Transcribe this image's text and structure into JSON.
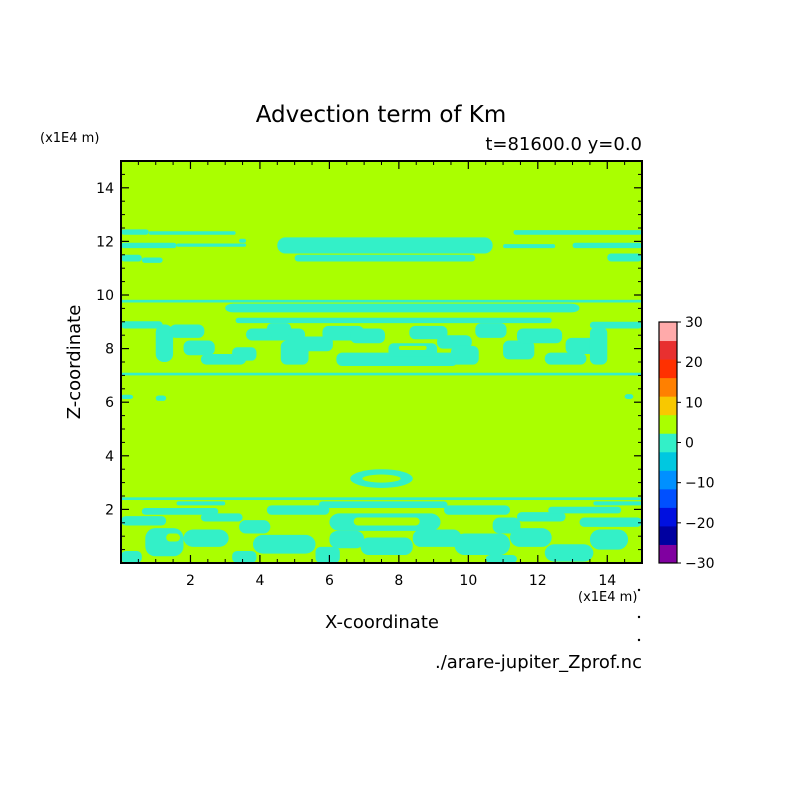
{
  "chart_data": {
    "type": "heatmap",
    "title": "Advection term of Km",
    "subtitle": "t=81600.0 y=0.0",
    "xlabel": "X-coordinate",
    "ylabel": "Z-coordinate",
    "x_unit": "(x1E4 m)",
    "y_unit": "(x1E4 m)",
    "source": "./arare-jupiter_Zprof.nc",
    "xlim": [
      0,
      15
    ],
    "ylim": [
      0,
      15
    ],
    "x_ticks": [
      2,
      4,
      6,
      8,
      10,
      12,
      14
    ],
    "y_ticks": [
      2,
      4,
      6,
      8,
      10,
      12,
      14
    ],
    "background_level": "0 to 5",
    "colorbar": {
      "levels": [
        -30,
        -25,
        -20,
        -15,
        -10,
        -5,
        0,
        5,
        10,
        15,
        20,
        25,
        30
      ],
      "labels": [
        "30",
        "20",
        "10",
        "0",
        "−10",
        "−20",
        "−30"
      ],
      "label_values": [
        30,
        20,
        10,
        0,
        -10,
        -20,
        -30
      ],
      "colors": [
        "#8000a0",
        "#0000a0",
        "#0010e0",
        "#0050ff",
        "#0090ff",
        "#00c8e0",
        "#33f0c8",
        "#aaff00",
        "#f8c800",
        "#ff8000",
        "#ff3000",
        "#e83030",
        "#ffaaaa"
      ]
    },
    "negative_regions_color": "#33f0c8",
    "positive_regions_color": "#aaff00"
  }
}
